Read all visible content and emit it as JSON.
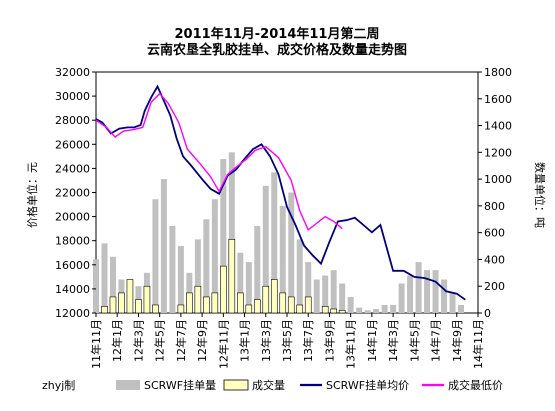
{
  "chart_data": {
    "type": "bar",
    "title": "2011年11月-2014年11月第二周",
    "subtitle": "云南农垦全乳胶挂单、成交价格及数量走势图",
    "ylabel_left": "价格单位：元",
    "ylabel_right": "数量单位：吨",
    "ylim_left": [
      12000,
      32000
    ],
    "ylim_right": [
      0,
      1800
    ],
    "yticks_left": [
      "12000",
      "14000",
      "16000",
      "18000",
      "20000",
      "22000",
      "24000",
      "26000",
      "28000",
      "30000",
      "32000"
    ],
    "yticks_right": [
      "0",
      "200",
      "400",
      "600",
      "800",
      "1000",
      "1200",
      "1400",
      "1600",
      "1800"
    ],
    "xticks": [
      "11年11月",
      "12年1月",
      "12年3月",
      "12年5月",
      "12年7月",
      "12年9月",
      "12年11月",
      "13年1月",
      "13年3月",
      "13年5月",
      "13年7月",
      "13年9月",
      "13年11月",
      "14年1月",
      "14年3月",
      "14年5月",
      "14年7月",
      "14年9月",
      "14年11月"
    ],
    "credit": "zhyj制",
    "legend_position": "bottom",
    "series": [
      {
        "name": "SCRWF挂单量",
        "kind": "bar",
        "axis": "right",
        "color": "#c0c0c0",
        "x": [
          0,
          0.4,
          0.8,
          1.2,
          1.6,
          2.0,
          2.4,
          2.8,
          3.2,
          3.6,
          4.0,
          4.4,
          4.8,
          5.2,
          5.6,
          6.0,
          6.4,
          6.8,
          7.2,
          7.6,
          8.0,
          8.4,
          8.8,
          9.2,
          9.6,
          10.0,
          10.4,
          10.8,
          11.2,
          11.6,
          12.0,
          12.4,
          12.8,
          13.2,
          13.6,
          14.0,
          14.4,
          14.8,
          15.2,
          15.6,
          16.0,
          16.4,
          16.8,
          17.2,
          17.6
        ],
        "values": [
          400,
          520,
          420,
          250,
          180,
          200,
          300,
          850,
          1000,
          650,
          500,
          300,
          550,
          700,
          850,
          1150,
          1200,
          450,
          380,
          650,
          950,
          1050,
          800,
          900,
          550,
          380,
          250,
          280,
          320,
          220,
          120,
          40,
          20,
          30,
          60,
          60,
          220,
          280,
          380,
          320,
          320,
          250,
          150,
          60,
          0
        ]
      },
      {
        "name": "成交量",
        "kind": "bar",
        "axis": "right",
        "color": "#ffffc0",
        "x": [
          0.4,
          0.8,
          1.2,
          1.6,
          2.0,
          2.4,
          2.8,
          4.0,
          4.4,
          4.8,
          5.2,
          5.6,
          6.0,
          6.4,
          6.8,
          7.2,
          7.6,
          8.0,
          8.4,
          8.8,
          9.2,
          9.6,
          10.0,
          10.8,
          11.2,
          11.6
        ],
        "values": [
          50,
          120,
          150,
          250,
          100,
          200,
          60,
          60,
          150,
          200,
          120,
          150,
          350,
          550,
          150,
          60,
          100,
          200,
          250,
          150,
          120,
          60,
          120,
          50,
          30,
          20
        ]
      },
      {
        "name": "SCRWF挂单均价",
        "kind": "line",
        "axis": "left",
        "color": "#000080",
        "x": [
          0,
          0.3,
          0.7,
          1.1,
          1.5,
          1.8,
          2.1,
          2.3,
          2.6,
          2.9,
          3.2,
          3.5,
          3.8,
          4.1,
          4.5,
          5.0,
          5.4,
          5.8,
          6.2,
          6.6,
          7.0,
          7.4,
          7.8,
          8.2,
          8.6,
          9.0,
          9.4,
          9.8,
          10.2,
          10.6,
          11.0,
          11.4,
          11.8,
          12.2,
          12.6,
          13.0,
          13.4,
          14.0,
          14.5,
          15.0,
          15.5,
          16.0,
          16.5,
          17.0,
          17.4
        ],
        "values": [
          28100,
          27800,
          26900,
          27300,
          27400,
          27400,
          27600,
          28800,
          29900,
          30800,
          29600,
          28400,
          26500,
          25000,
          24200,
          23100,
          22300,
          21900,
          23400,
          23900,
          24800,
          25600,
          26000,
          25000,
          23500,
          20800,
          19300,
          17600,
          16800,
          16100,
          17900,
          19600,
          19700,
          19900,
          19300,
          18700,
          19300,
          15500,
          15500,
          15000,
          14900,
          14600,
          13800,
          13600,
          13100
        ]
      },
      {
        "name": "成交最低价",
        "kind": "line",
        "axis": "left",
        "color": "#ff00ff",
        "x": [
          0,
          0.5,
          0.9,
          1.3,
          1.7,
          2.2,
          2.6,
          3.0,
          3.4,
          3.9,
          4.3,
          4.9,
          5.4,
          5.8,
          6.2,
          6.6,
          7.1,
          7.5,
          8.0,
          8.6,
          9.2,
          9.6,
          10.0,
          10.8,
          11.2,
          11.6
        ],
        "values": [
          28000,
          27400,
          26600,
          27100,
          27200,
          27400,
          29500,
          30200,
          29400,
          27800,
          25600,
          24400,
          23300,
          22100,
          23500,
          24100,
          24800,
          25500,
          25800,
          24900,
          23000,
          20500,
          18900,
          20000,
          19600,
          19000
        ]
      }
    ]
  }
}
